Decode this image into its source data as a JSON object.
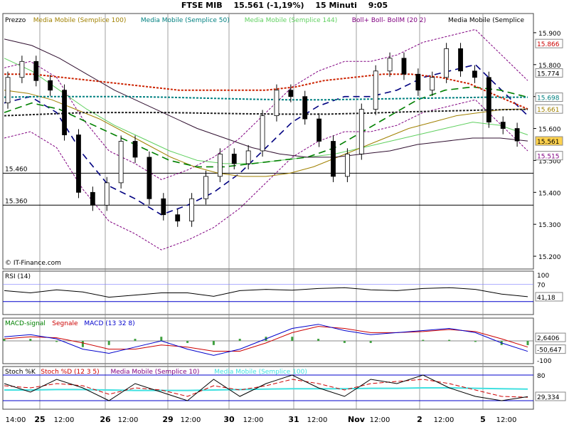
{
  "header": {
    "symbol": "FTSE MIB",
    "quote": "15.561 (-1,19%)",
    "interval": "15 Minuti",
    "time": "9:05"
  },
  "panels": {
    "price": {
      "legend": [
        {
          "text": "Prezzo",
          "color": "#000000"
        },
        {
          "text": "Media Mobile (Semplice 100)",
          "color": "#a08000"
        },
        {
          "text": "Media Mobile (Semplice 50)",
          "color": "#008080"
        },
        {
          "text": "Media Mobile (Semplice 144)",
          "color": "#60d060"
        },
        {
          "text": "Boll+ Boll- BollM (20 2)",
          "color": "#800080"
        },
        {
          "text": "Media Mobile (Semplice",
          "color": "#000000"
        }
      ],
      "watermark": "© IT-Finance.com",
      "left_levels": [
        "15.460",
        "15.360"
      ],
      "right_tags": [
        {
          "text": "15.866",
          "color": "#cc0000"
        },
        {
          "text": "15.774",
          "color": "#000000"
        },
        {
          "text": "15.698",
          "color": "#008080"
        },
        {
          "text": "15.661",
          "color": "#a08000"
        },
        {
          "text": "15.561",
          "color": "#000000"
        },
        {
          "text": "15.515",
          "color": "#800080"
        }
      ]
    },
    "rsi": {
      "legend": [
        {
          "text": "RSI (14)",
          "color": "#000000"
        }
      ],
      "axis": [
        "100",
        "70"
      ],
      "tag": "41,18"
    },
    "macd": {
      "legend": [
        {
          "text": "MACD-signal",
          "color": "#008000"
        },
        {
          "text": "Segnale",
          "color": "#cc0000"
        },
        {
          "text": "MACD (13 32 8)",
          "color": "#0000cc"
        }
      ],
      "tags": [
        "2,6406",
        "-50,647"
      ],
      "axis": [
        "-100"
      ]
    },
    "stoch": {
      "legend": [
        {
          "text": "Stoch %K",
          "color": "#000000"
        },
        {
          "text": "Stoch %D (12 3 5)",
          "color": "#cc0000"
        },
        {
          "text": "Media Mobile (Semplice 10)",
          "color": "#800080"
        },
        {
          "text": "Media Mobile (Semplice 100)",
          "color": "#40e0e0"
        }
      ],
      "axis": [
        "80"
      ],
      "tag": "29,334"
    }
  },
  "chart_data": {
    "type": "line",
    "title": "FTSE MIB",
    "y_ticks": [
      15200,
      15300,
      15400,
      15500,
      15600,
      15700,
      15800,
      15900
    ],
    "y_tick_labels": [
      "15.200",
      "15.300",
      "15.400",
      "15.500",
      "15.600",
      "15.700",
      "15.800",
      "15.900"
    ],
    "ylim": [
      15160,
      15960
    ],
    "x_tick_labels": [
      "14:00",
      "25",
      "12:00",
      "26",
      "12:00",
      "29",
      "12:00",
      "30",
      "12:00",
      "31",
      "12:00",
      "Nov",
      "12:00",
      "2",
      "12:00",
      "5",
      "12:00"
    ],
    "horizontal_levels": [
      15460,
      15360
    ],
    "price_series": [
      15680,
      15760,
      15810,
      15750,
      15720,
      15580,
      15400,
      15360,
      15430,
      15560,
      15510,
      15380,
      15330,
      15310,
      15380,
      15450,
      15520,
      15490,
      15530,
      15640,
      15720,
      15700,
      15630,
      15560,
      15450,
      15520,
      15660,
      15780,
      15820,
      15770,
      15720,
      15760,
      15850,
      15780,
      15760,
      15620,
      15600,
      15561
    ],
    "ma100": [
      15720,
      15710,
      15690,
      15660,
      15630,
      15590,
      15550,
      15510,
      15480,
      15460,
      15450,
      15450,
      15460,
      15480,
      15510,
      15540,
      15570,
      15600,
      15620,
      15640,
      15650,
      15660,
      15661
    ],
    "ma50": [
      15650,
      15680,
      15660,
      15620,
      15580,
      15540,
      15500,
      15480,
      15480,
      15490,
      15500,
      15510,
      15540,
      15590,
      15640,
      15690,
      15720,
      15730,
      15720,
      15698
    ],
    "ma144": [
      15820,
      15780,
      15720,
      15660,
      15610,
      15570,
      15530,
      15500,
      15490,
      15490,
      15500,
      15510,
      15520,
      15540,
      15560,
      15580,
      15600,
      15620,
      15610,
      15580
    ],
    "ma_black": [
      15880,
      15860,
      15820,
      15770,
      15720,
      15680,
      15640,
      15600,
      15570,
      15540,
      15520,
      15510,
      15510,
      15520,
      15530,
      15550,
      15560,
      15570,
      15570,
      15561
    ],
    "boll_mid": [
      15680,
      15700,
      15650,
      15520,
      15420,
      15380,
      15330,
      15360,
      15400,
      15460,
      15540,
      15620,
      15670,
      15700,
      15700,
      15720,
      15760,
      15780,
      15800,
      15720,
      15640
    ],
    "red_dotted_line": [
      15770,
      15770,
      15760,
      15750,
      15740,
      15730,
      15720,
      15720,
      15720,
      15720,
      15730,
      15750,
      15760,
      15770,
      15770,
      15760,
      15740,
      15700,
      15661
    ],
    "teal_dotted_line": [
      15698,
      15700,
      15700,
      15700,
      15698,
      15695,
      15692,
      15690,
      15690,
      15692,
      15694,
      15696,
      15698,
      15698
    ],
    "black_dotted_line": [
      15640,
      15645,
      15650,
      15650,
      15650,
      15648,
      15646,
      15645,
      15645,
      15648,
      15652,
      15655,
      15658,
      15660
    ],
    "rsi": [
      55,
      50,
      57,
      52,
      40,
      45,
      50,
      50,
      42,
      55,
      58,
      56,
      60,
      62,
      57,
      55,
      60,
      62,
      58,
      47,
      41.18
    ],
    "rsi_ylim": [
      0,
      100
    ],
    "macd": [
      20,
      30,
      10,
      -40,
      -60,
      -30,
      0,
      -40,
      -70,
      -40,
      10,
      60,
      80,
      50,
      30,
      40,
      50,
      60,
      40,
      -10,
      -50.647
    ],
    "macd_signal": [
      10,
      20,
      15,
      -10,
      -40,
      -40,
      -20,
      -30,
      -50,
      -50,
      -10,
      40,
      70,
      60,
      40,
      40,
      45,
      55,
      45,
      10,
      -30
    ],
    "macd_ylim": [
      -110,
      110
    ],
    "stoch_k": [
      60,
      40,
      70,
      50,
      20,
      60,
      40,
      20,
      70,
      30,
      60,
      80,
      50,
      30,
      70,
      60,
      80,
      50,
      30,
      20,
      29.334
    ],
    "stoch_d": [
      55,
      50,
      60,
      55,
      35,
      50,
      45,
      30,
      55,
      45,
      55,
      70,
      60,
      45,
      60,
      65,
      70,
      60,
      45,
      30,
      28
    ],
    "stoch_ma100": [
      45,
      45,
      46,
      46,
      45,
      44,
      44,
      44,
      45,
      46,
      47,
      48,
      48,
      48,
      49,
      49,
      50,
      50,
      49,
      48,
      47
    ],
    "stoch_ylim": [
      0,
      100
    ]
  }
}
